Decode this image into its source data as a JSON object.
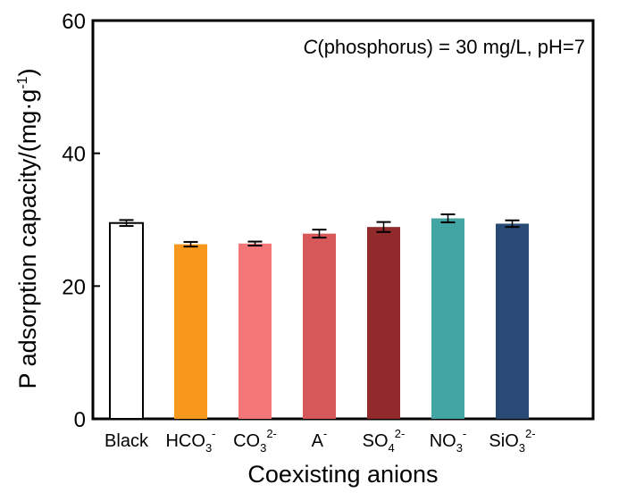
{
  "chart_data": {
    "type": "bar",
    "title": "",
    "annotation": {
      "prefix": "C",
      "text": "(phosphorus) = 30 mg/L, pH=7"
    },
    "xlabel": "Coexisting anions",
    "ylabel": "P adsorption capacity/(mg·g",
    "ylabel_sup": "-1",
    "ylabel_end": ")",
    "ylim": [
      0,
      60
    ],
    "yticks": [
      0,
      20,
      40,
      60
    ],
    "categories": [
      {
        "base": "Black",
        "sub": "",
        "sup": ""
      },
      {
        "base": "HCO",
        "sub": "3",
        "sup": "-"
      },
      {
        "base": "CO",
        "sub": "3",
        "sup": "2-"
      },
      {
        "base": "A",
        "sub": "",
        "sup": "-"
      },
      {
        "base": "SO",
        "sub": "4",
        "sup": "2-"
      },
      {
        "base": "NO",
        "sub": "3",
        "sup": "-"
      },
      {
        "base": "SiO",
        "sub": "3",
        "sup": "2-"
      }
    ],
    "values": [
      29.5,
      26.3,
      26.4,
      27.9,
      28.9,
      30.2,
      29.4
    ],
    "errors": [
      0.45,
      0.35,
      0.3,
      0.6,
      0.75,
      0.6,
      0.5
    ],
    "colors": [
      "#ffffff",
      "#f7971c",
      "#f47676",
      "#d65858",
      "#922a2b",
      "#42a5a4",
      "#284a74"
    ],
    "grid": false
  }
}
